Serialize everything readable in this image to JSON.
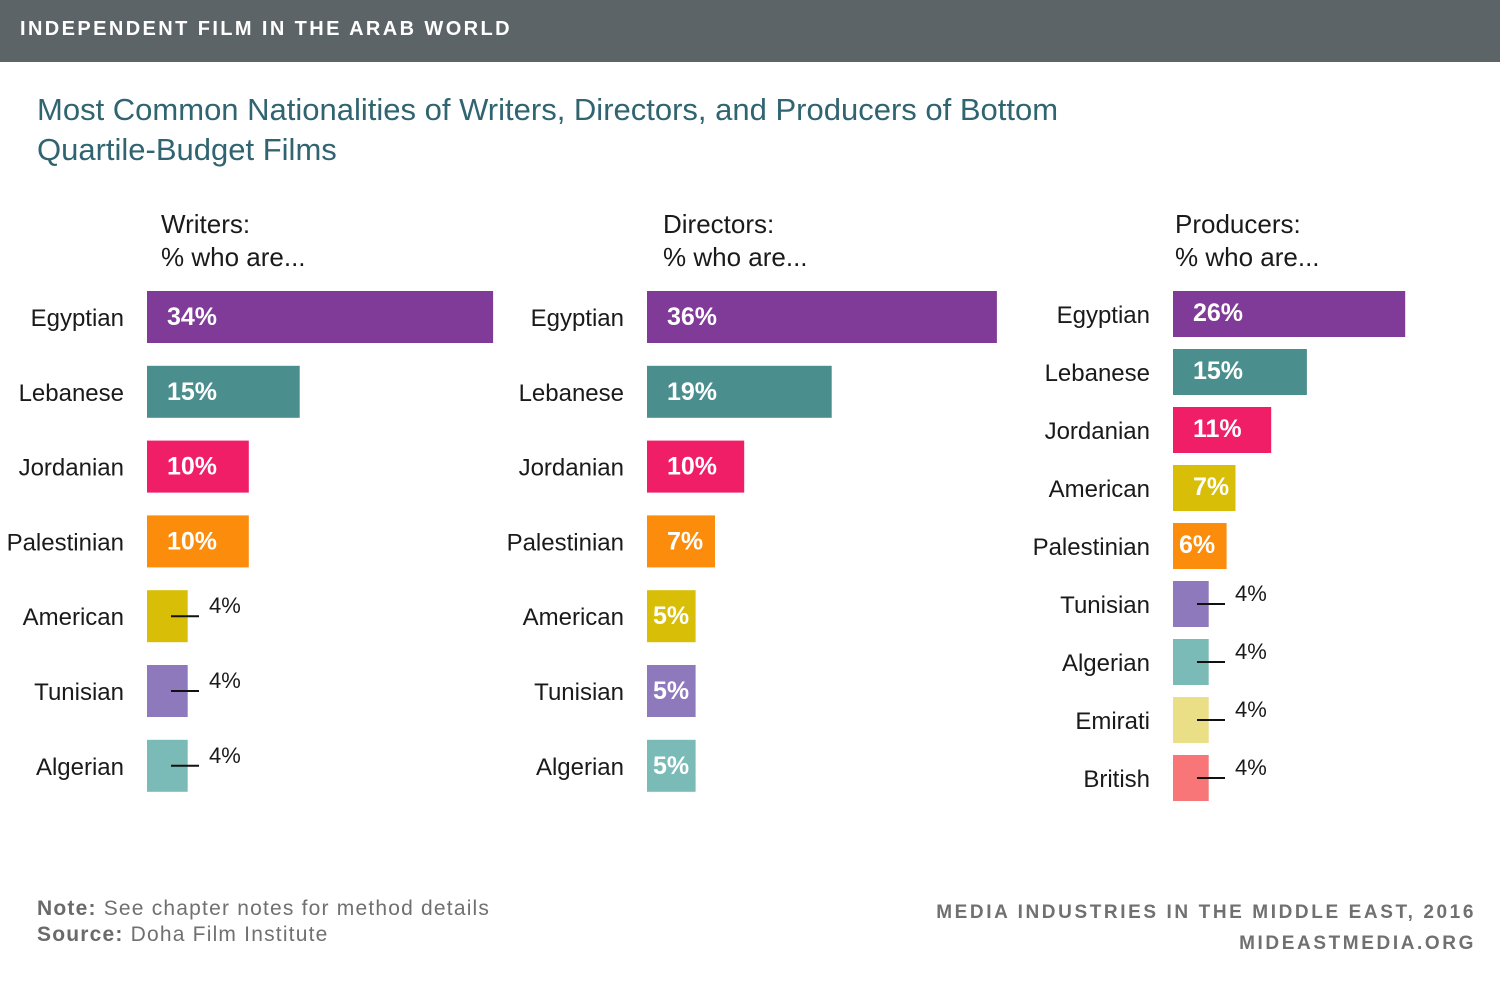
{
  "banner": {
    "text": "INDEPENDENT FILM IN THE ARAB WORLD"
  },
  "title": "Most Common Nationalities of Writers, Directors, and Producers of Bottom Quartile-Budget Films",
  "footer": {
    "note_label": "Note:",
    "note_text": "See chapter notes for method details",
    "source_label": "Source:",
    "source_text": "Doha Film Institute",
    "publication": "MEDIA INDUSTRIES IN THE MIDDLE EAST, 2016",
    "website": "MIDEASTMEDIA.ORG"
  },
  "colors": {
    "Egyptian": "#7f3b97",
    "Lebanese": "#4a8f8e",
    "Jordanian": "#f01d67",
    "Palestinian": "#fb8c0c",
    "American": "#d8be06",
    "Tunisian": "#8e79bd",
    "Algerian": "#7bbbb7",
    "Emirati": "#eadf86",
    "British": "#f87677"
  },
  "chart_data": [
    {
      "type": "bar",
      "orientation": "horizontal",
      "title": "Writers:",
      "subtitle": "% who are...",
      "categories": [
        "Egyptian",
        "Lebanese",
        "Jordanian",
        "Palestinian",
        "American",
        "Tunisian",
        "Algerian"
      ],
      "values": [
        34,
        15,
        10,
        10,
        4,
        4,
        4
      ],
      "value_labels": [
        "34%",
        "15%",
        "10%",
        "10%",
        "4%",
        "4%",
        "4%"
      ]
    },
    {
      "type": "bar",
      "orientation": "horizontal",
      "title": "Directors:",
      "subtitle": "% who are...",
      "categories": [
        "Egyptian",
        "Lebanese",
        "Jordanian",
        "Palestinian",
        "American",
        "Tunisian",
        "Algerian"
      ],
      "values": [
        36,
        19,
        10,
        7,
        5,
        5,
        5
      ],
      "value_labels": [
        "36%",
        "19%",
        "10%",
        "7%",
        "5%",
        "5%",
        "5%"
      ]
    },
    {
      "type": "bar",
      "orientation": "horizontal",
      "title": "Producers:",
      "subtitle": "% who are...",
      "categories": [
        "Egyptian",
        "Lebanese",
        "Jordanian",
        "American",
        "Palestinian",
        "Tunisian",
        "Algerian",
        "Emirati",
        "British"
      ],
      "values": [
        26,
        15,
        11,
        7,
        6,
        4,
        4,
        4,
        4
      ],
      "value_labels": [
        "26%",
        "15%",
        "11%",
        "7%",
        "6%",
        "4%",
        "4%",
        "4%",
        "4%"
      ]
    }
  ]
}
